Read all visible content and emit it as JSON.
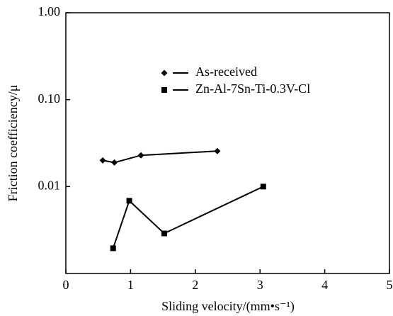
{
  "chart_data": {
    "type": "line",
    "xlabel": "Sliding velocity/(mm•s⁻¹)",
    "ylabel": "Friction coefficiency/μ",
    "xlim": [
      0,
      5
    ],
    "xticks": [
      0,
      1,
      2,
      3,
      4,
      5
    ],
    "ylim": [
      0.001,
      1
    ],
    "yscale": "log",
    "yticks": [
      {
        "value": 1,
        "label": "1.00"
      },
      {
        "value": 0.1,
        "label": "0.10"
      },
      0.01
    ],
    "legend": "upper center",
    "series": [
      {
        "name": "As-received",
        "color": "#000000",
        "marker": "diamond",
        "x": [
          0.57,
          0.75,
          1.16,
          2.34
        ],
        "values": [
          0.02,
          0.0189,
          0.0229,
          0.0256
        ]
      },
      {
        "name": "Zn-Al-7Sn-Ti-0.3V-Cl",
        "color": "#000000",
        "marker": "square",
        "x": [
          0.73,
          0.98,
          1.52,
          3.05
        ],
        "values": [
          0.00195,
          0.00687,
          0.00289,
          0.01
        ]
      }
    ]
  }
}
